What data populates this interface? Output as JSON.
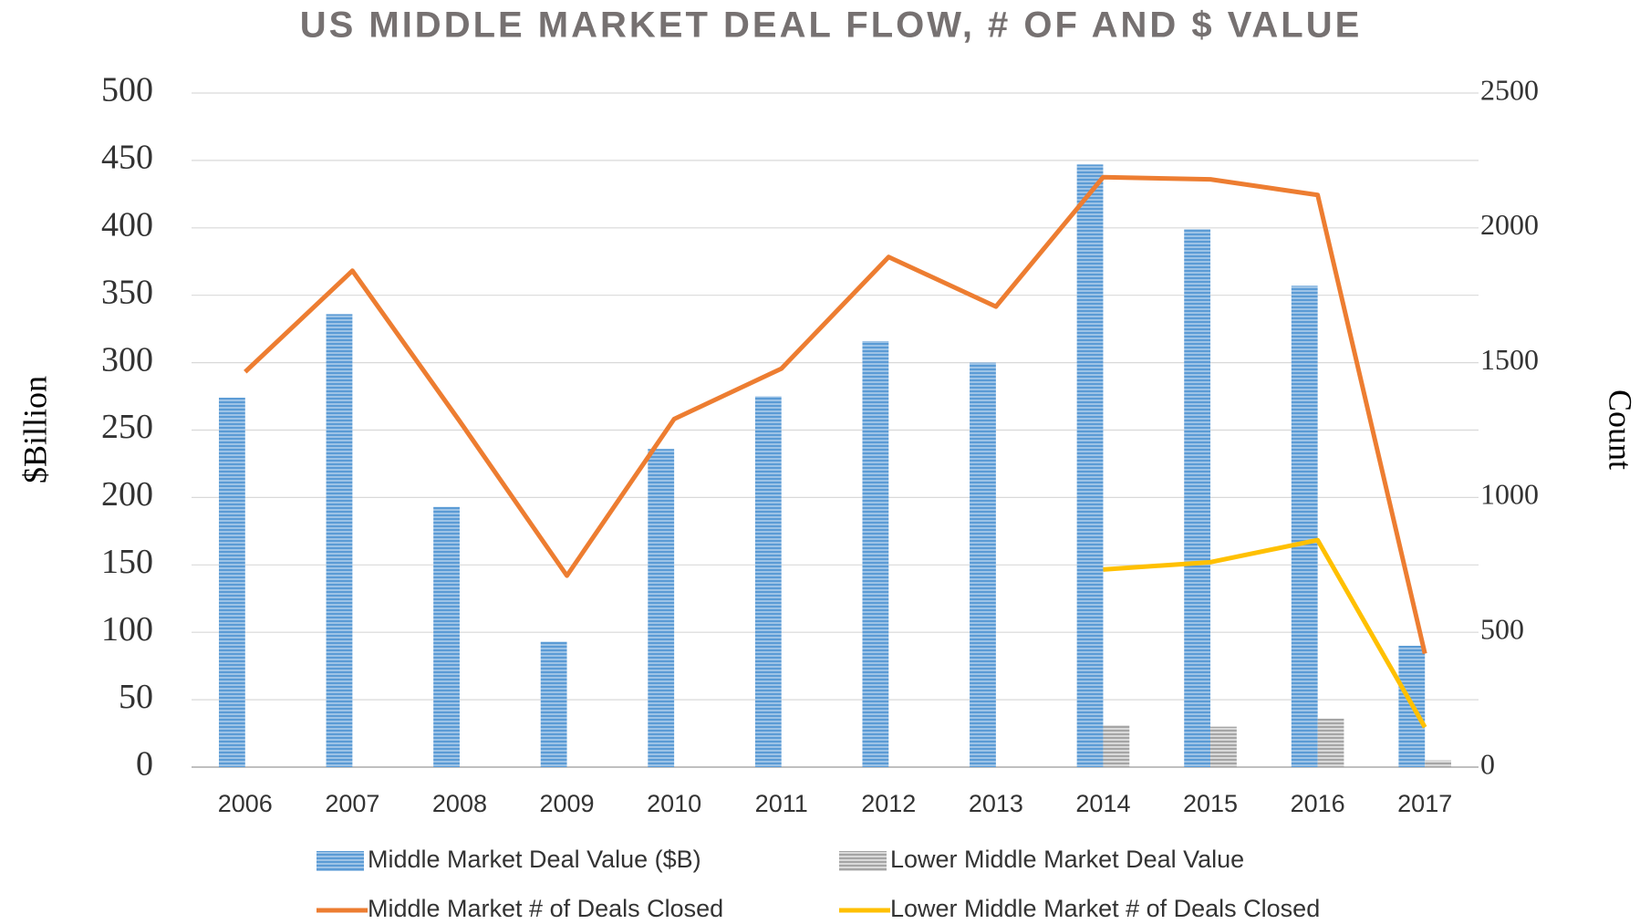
{
  "chart_data": {
    "type": "bar",
    "title": "US MIDDLE MARKET DEAL FLOW, # OF AND $ VALUE",
    "y_label": "$Billion",
    "y2_label": "Count",
    "categories": [
      "2006",
      "2007",
      "2008",
      "2009",
      "2010",
      "2011",
      "2012",
      "2013",
      "2014",
      "2015",
      "2016",
      "2017"
    ],
    "series": [
      {
        "name": "Middle Market Deal Value ($B)",
        "type": "bar",
        "color": "#5b9bd5",
        "axis": "y",
        "values": [
          274,
          336,
          193,
          93,
          236,
          275,
          316,
          300,
          447,
          399,
          357,
          90
        ]
      },
      {
        "name": "Lower Middle Market Deal Value",
        "type": "bar",
        "color": "#a5a5a5",
        "axis": "y",
        "values": [
          null,
          null,
          null,
          null,
          null,
          null,
          null,
          null,
          31,
          30,
          36,
          5
        ]
      },
      {
        "name": "Middle Market # of Deals Closed",
        "type": "line",
        "color": "#ed7d31",
        "axis": "y2",
        "values": [
          1466,
          1841,
          1283,
          710,
          1291,
          1478,
          1892,
          1708,
          2188,
          2180,
          2122,
          421
        ]
      },
      {
        "name": "Lower Middle Market # of Deals Closed",
        "type": "line",
        "color": "#ffc000",
        "axis": "y2",
        "values": [
          null,
          null,
          null,
          null,
          null,
          null,
          null,
          null,
          733,
          760,
          842,
          148
        ]
      }
    ],
    "ylim": [
      0,
      500
    ],
    "yticks": [
      0,
      50,
      100,
      150,
      200,
      250,
      300,
      350,
      400,
      450,
      500
    ],
    "y2lim": [
      0,
      2500
    ],
    "y2ticks": [
      0,
      500,
      1000,
      1500,
      2000,
      2500
    ],
    "grid": true,
    "legend": "bottom"
  }
}
